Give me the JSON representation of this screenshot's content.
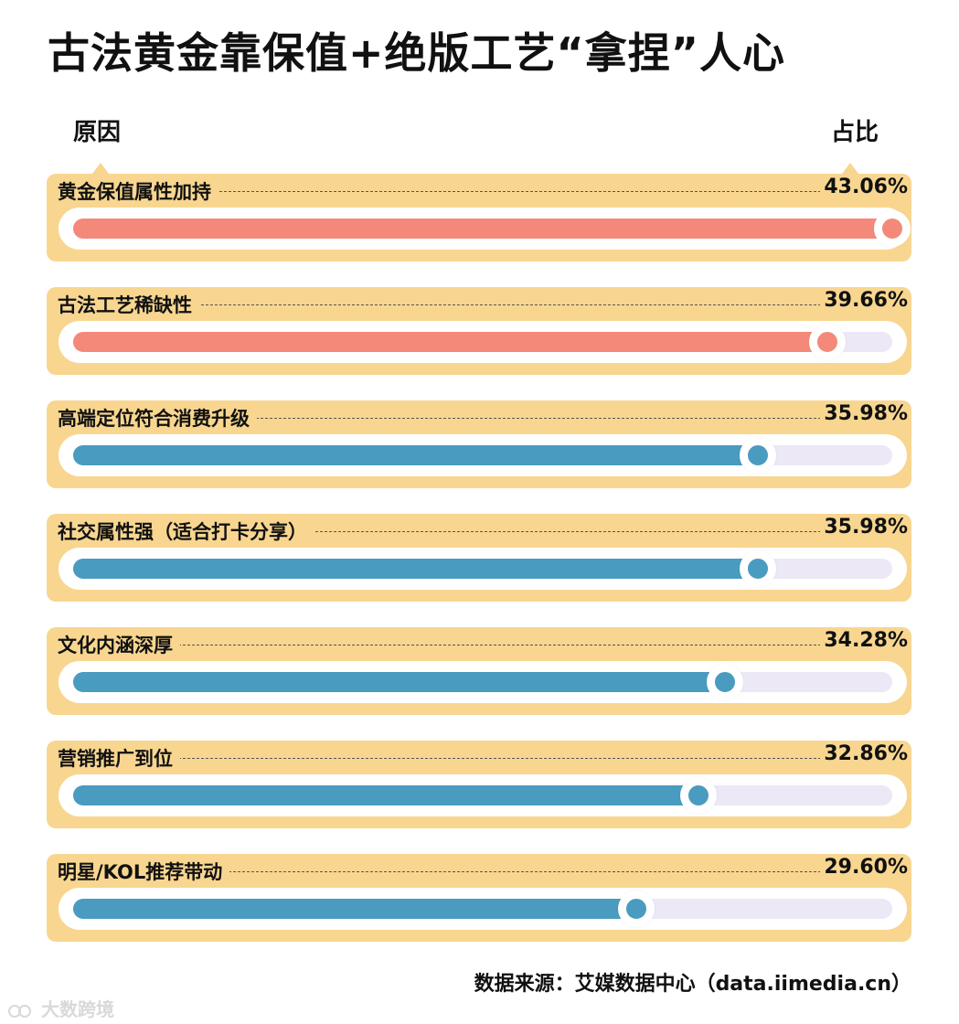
{
  "title": "古法黄金靠保值+绝版工艺“拿捏”人心",
  "col_left": "原因",
  "col_right": "占比",
  "source": "数据来源：艾媒数据中心（data.iimedia.cn）",
  "watermark": "大数跨境",
  "colors": {
    "card": "#f8d690",
    "highlight": "#f4897a",
    "normal": "#4a9bc0",
    "track": "#ece8f6"
  },
  "chart_data": {
    "type": "bar",
    "orientation": "horizontal",
    "title": "古法黄金靠保值+绝版工艺“拿捏”人心",
    "xlabel": "占比",
    "ylabel": "原因",
    "xlim": [
      0,
      43.06
    ],
    "categories": [
      "黄金保值属性加持",
      "古法工艺稀缺性",
      "高端定位符合消费升级",
      "社交属性强（适合打卡分享）",
      "文化内涵深厚",
      "营销推广到位",
      "明星/KOL推荐带动"
    ],
    "values": [
      43.06,
      39.66,
      35.98,
      35.98,
      34.28,
      32.86,
      29.6
    ],
    "labels": [
      "43.06%",
      "39.66%",
      "35.98%",
      "35.98%",
      "34.28%",
      "32.86%",
      "29.60%"
    ],
    "highlight": [
      true,
      true,
      false,
      false,
      false,
      false,
      false
    ],
    "unit": "%"
  }
}
